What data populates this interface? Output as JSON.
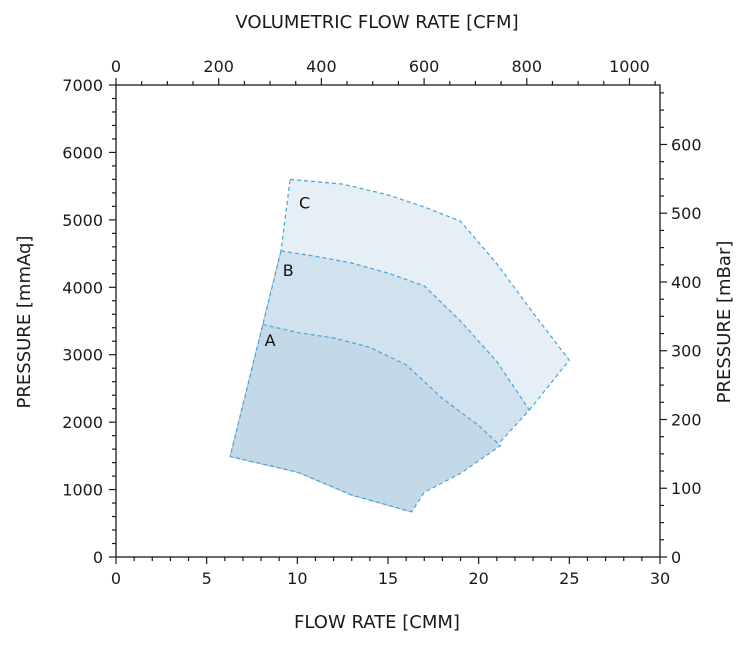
{
  "chart_data": {
    "type": "area",
    "title": "",
    "xlabel": "FLOW RATE [CMM]",
    "ylabel": "PRESSURE [mmAq]",
    "x2label": "VOLUMETRIC FLOW RATE [CFM]",
    "y2label": "PRESSURE [mBar]",
    "xlim": [
      0,
      30
    ],
    "ylim": [
      0,
      7000
    ],
    "x2lim": [
      0,
      1059.44
    ],
    "y2lim": [
      0,
      686.5
    ],
    "x_ticks": [
      0,
      5,
      10,
      15,
      20,
      25,
      30
    ],
    "y_ticks": [
      0,
      1000,
      2000,
      3000,
      4000,
      5000,
      6000,
      7000
    ],
    "x2_ticks": [
      0,
      200,
      400,
      600,
      800,
      1000
    ],
    "y2_ticks": [
      0,
      100,
      200,
      300,
      400,
      500,
      600
    ],
    "grid": false,
    "colors": {
      "A": "#c3d9e8",
      "B": "#d0e2ee",
      "C": "#e6eef6",
      "outline": "#4aa3d8"
    },
    "series": [
      {
        "name": "C",
        "points": [
          [
            9.6,
            5600
          ],
          [
            12.5,
            5530
          ],
          [
            15,
            5370
          ],
          [
            17,
            5190
          ],
          [
            19,
            4980
          ],
          [
            21,
            4350
          ],
          [
            23,
            3620
          ],
          [
            25,
            2920
          ],
          [
            22.8,
            2180
          ],
          [
            20.5,
            1750
          ],
          [
            17,
            1250
          ],
          [
            16.3,
            670
          ],
          [
            13,
            920
          ],
          [
            10,
            1260
          ],
          [
            6.3,
            1490
          ],
          [
            8.1,
            3450
          ],
          [
            9.1,
            4540
          ]
        ]
      },
      {
        "name": "B",
        "points": [
          [
            9.1,
            4540
          ],
          [
            11,
            4460
          ],
          [
            13,
            4360
          ],
          [
            15,
            4210
          ],
          [
            17,
            4020
          ],
          [
            19,
            3500
          ],
          [
            21,
            2900
          ],
          [
            22.8,
            2180
          ],
          [
            21,
            1650
          ],
          [
            17,
            1250
          ],
          [
            16.3,
            670
          ],
          [
            13,
            920
          ],
          [
            10,
            1260
          ],
          [
            6.3,
            1490
          ],
          [
            8.1,
            3450
          ]
        ]
      },
      {
        "name": "A",
        "points": [
          [
            8.1,
            3450
          ],
          [
            10,
            3330
          ],
          [
            12,
            3250
          ],
          [
            14,
            3110
          ],
          [
            16,
            2850
          ],
          [
            18,
            2350
          ],
          [
            20,
            1950
          ],
          [
            21.2,
            1650
          ],
          [
            19,
            1240
          ],
          [
            17,
            960
          ],
          [
            16.3,
            670
          ],
          [
            13,
            920
          ],
          [
            10,
            1260
          ],
          [
            6.3,
            1490
          ]
        ]
      }
    ]
  }
}
